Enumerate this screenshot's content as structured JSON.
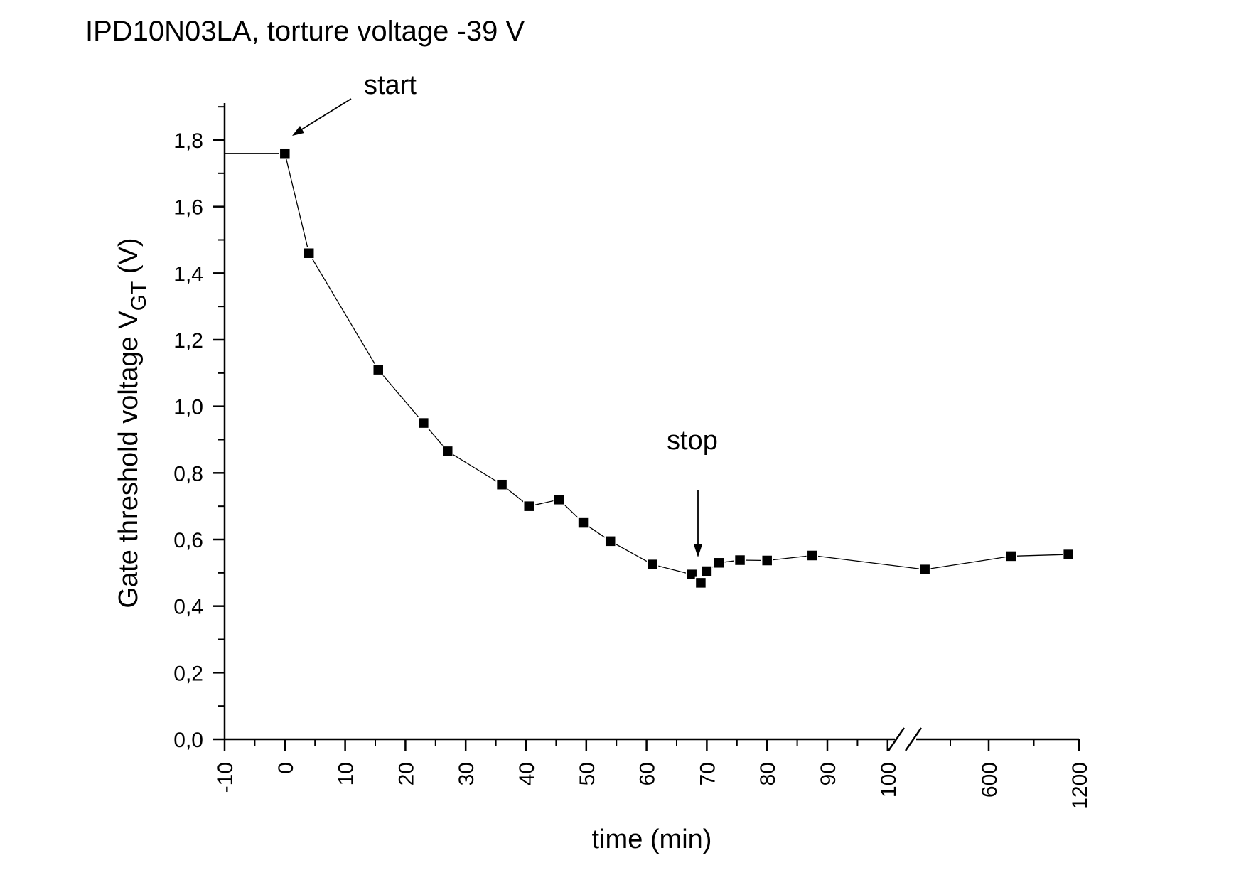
{
  "chart_data": {
    "type": "scatter",
    "title": "IPD10N03LA, torture voltage -39 V",
    "xlabel": "time (min)",
    "ylabel": "Gate threshold voltage V",
    "ylabel_subscript": "GT",
    "ylabel_unit": " (V)",
    "ylim": [
      0,
      1.9
    ],
    "xlim": [
      -10,
      1200
    ],
    "x_scale": "piecewise with axis break between 100 and 600",
    "x_ticks": [
      "-10",
      "0",
      "10",
      "20",
      "30",
      "40",
      "50",
      "60",
      "70",
      "80",
      "90",
      "100",
      "600",
      "1200"
    ],
    "y_ticks": [
      "0,0",
      "0,2",
      "0,4",
      "0,6",
      "0,8",
      "1,0",
      "1,2",
      "1,4",
      "1,6",
      "1,8"
    ],
    "y_tick_values": [
      0,
      0.2,
      0.4,
      0.6,
      0.8,
      1.0,
      1.2,
      1.4,
      1.6,
      1.8
    ],
    "baseline": {
      "y": 1.76,
      "from_x": -10,
      "to_x": 0
    },
    "series": [
      {
        "marker": "square",
        "color": "#000000",
        "points": [
          [
            0,
            1.76
          ],
          [
            4,
            1.46
          ],
          [
            15.5,
            1.11
          ],
          [
            23,
            0.95
          ],
          [
            27,
            0.865
          ],
          [
            36,
            0.765
          ],
          [
            40.5,
            0.7
          ],
          [
            45.5,
            0.72
          ],
          [
            49.5,
            0.65
          ],
          [
            54,
            0.595
          ],
          [
            61,
            0.525
          ],
          [
            67.5,
            0.495
          ],
          [
            69,
            0.47
          ],
          [
            70,
            0.505
          ],
          [
            72,
            0.53
          ],
          [
            75.5,
            0.538
          ],
          [
            80,
            0.537
          ],
          [
            87.5,
            0.552
          ],
          [
            101,
            0.51
          ],
          [
            750,
            0.55
          ],
          [
            1130,
            0.555
          ]
        ]
      }
    ],
    "annotations": [
      {
        "text": "start",
        "x": 0,
        "y": 1.76
      },
      {
        "text": "stop",
        "x": 69,
        "y": 0.5
      }
    ],
    "grid": false,
    "legend": "none"
  }
}
